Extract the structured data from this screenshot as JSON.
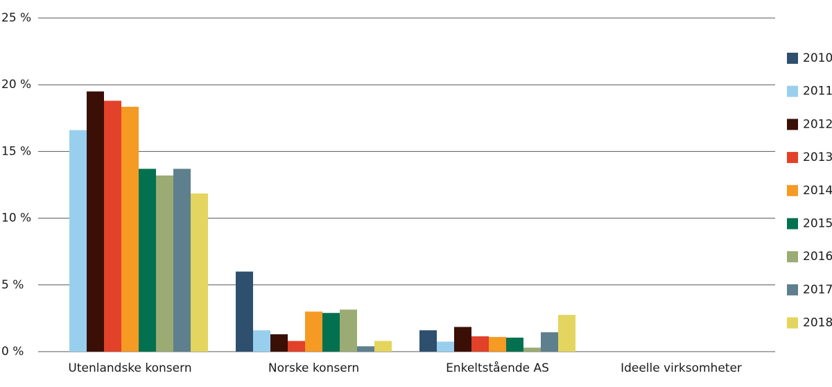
{
  "chart_data": {
    "type": "bar",
    "categories": [
      "Utenlandske konsern",
      "Norske konsern",
      "Enkeltstående AS",
      "Ideelle virksomheter"
    ],
    "series": [
      {
        "name": "2010",
        "color": "#2e4f6e",
        "values": [
          0,
          6.0,
          1.6,
          0
        ]
      },
      {
        "name": "2011",
        "color": "#99cfee",
        "values": [
          16.6,
          1.6,
          0.75,
          0
        ]
      },
      {
        "name": "2012",
        "color": "#3a0f06",
        "values": [
          19.5,
          1.3,
          1.85,
          0
        ]
      },
      {
        "name": "2013",
        "color": "#e2412a",
        "values": [
          18.8,
          0.8,
          1.15,
          0
        ]
      },
      {
        "name": "2014",
        "color": "#f59a23",
        "values": [
          18.35,
          3.0,
          1.1,
          0
        ]
      },
      {
        "name": "2015",
        "color": "#037150",
        "values": [
          13.7,
          2.9,
          1.05,
          0
        ]
      },
      {
        "name": "2016",
        "color": "#9aab74",
        "values": [
          13.2,
          3.15,
          0.3,
          0
        ]
      },
      {
        "name": "2017",
        "color": "#5e7f8d",
        "values": [
          13.7,
          0.4,
          1.45,
          0
        ]
      },
      {
        "name": "2018",
        "color": "#e3d55e",
        "values": [
          11.85,
          0.8,
          2.75,
          0
        ]
      }
    ],
    "ylim": [
      0,
      25
    ],
    "yticks": [
      {
        "value": 0,
        "label": "0 %"
      },
      {
        "value": 5,
        "label": "5 %"
      },
      {
        "value": 10,
        "label": "10 %"
      },
      {
        "value": 15,
        "label": "15 %"
      },
      {
        "value": 20,
        "label": "20 %"
      },
      {
        "value": 25,
        "label": "25 %"
      }
    ],
    "grid": true,
    "legend": "right"
  }
}
